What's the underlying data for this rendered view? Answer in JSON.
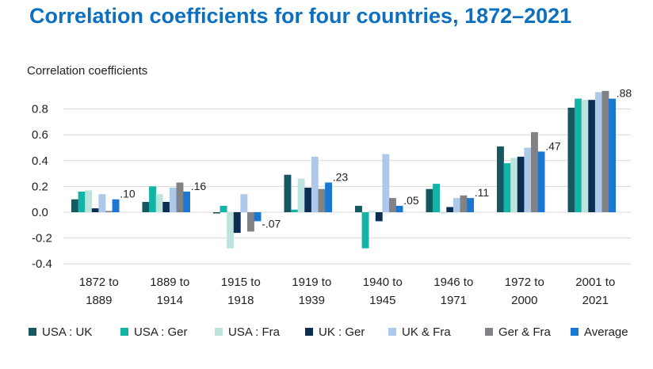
{
  "chart_data": {
    "type": "bar",
    "title": "Correlation coefficients for four countries, 1872–2021",
    "ylabel": "Correlation coefficients",
    "xlabel": "",
    "ylim": [
      -0.4,
      0.9
    ],
    "yticks": [
      0.8,
      0.6,
      0.4,
      0.2,
      0.0,
      -0.2,
      -0.4
    ],
    "ytick_labels": [
      "0.8",
      "0.6",
      "0.4",
      "0.2",
      "0.0",
      "-0.2",
      "-0.4"
    ],
    "grid": true,
    "legend_position": "bottom",
    "categories": [
      [
        "1872 to",
        "1889"
      ],
      [
        "1889 to",
        "1914"
      ],
      [
        "1915 to",
        "1918"
      ],
      [
        "1919 to",
        "1939"
      ],
      [
        "1940 to",
        "1945"
      ],
      [
        "1946 to",
        "1971"
      ],
      [
        "1972 to",
        "2000"
      ],
      [
        "2001 to",
        "2021"
      ]
    ],
    "series": [
      {
        "name": "USA : UK",
        "color": "#17575f",
        "values": [
          0.1,
          0.08,
          -0.01,
          0.29,
          0.05,
          0.18,
          0.51,
          0.81
        ]
      },
      {
        "name": "USA : Ger",
        "color": "#13b3a5",
        "values": [
          0.16,
          0.2,
          0.05,
          0.02,
          -0.28,
          0.22,
          0.38,
          0.88
        ]
      },
      {
        "name": "USA : Fra",
        "color": "#bde3dd",
        "values": [
          0.17,
          0.14,
          -0.28,
          0.26,
          0.01,
          -0.01,
          0.42,
          0.87
        ]
      },
      {
        "name": "UK : Ger",
        "color": "#0b2e52",
        "values": [
          0.03,
          0.08,
          -0.16,
          0.19,
          -0.07,
          0.04,
          0.43,
          0.87
        ]
      },
      {
        "name": "UK & Fra",
        "color": "#adc9ea",
        "values": [
          0.14,
          0.19,
          0.14,
          0.43,
          0.45,
          0.11,
          0.5,
          0.93
        ]
      },
      {
        "name": "Ger & Fra",
        "color": "#808285",
        "values": [
          0.01,
          0.23,
          -0.15,
          0.18,
          0.11,
          0.13,
          0.62,
          0.94
        ]
      },
      {
        "name": "Average",
        "color": "#1a78d2",
        "values": [
          0.1,
          0.16,
          -0.07,
          0.23,
          0.05,
          0.11,
          0.47,
          0.88
        ]
      }
    ],
    "data_labels": [
      ".10",
      ".16",
      "-.07",
      ".23",
      ".05",
      ".11",
      ".47",
      ".88"
    ]
  }
}
